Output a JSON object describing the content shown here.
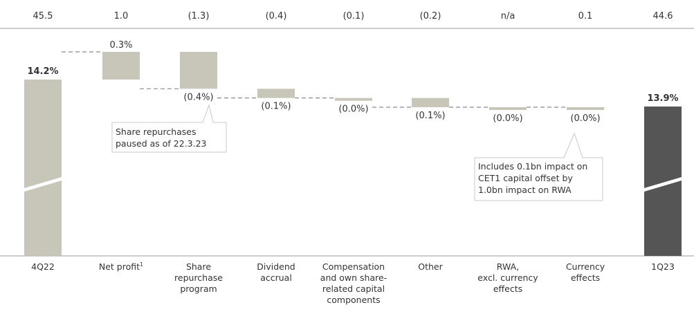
{
  "chart_data": {
    "type": "bar",
    "subtype": "waterfall",
    "categories": [
      {
        "lines": [
          "4Q22"
        ],
        "sup": ""
      },
      {
        "lines": [
          "Net profit"
        ],
        "sup": "1"
      },
      {
        "lines": [
          "Share",
          "repurchase",
          "program"
        ],
        "sup": ""
      },
      {
        "lines": [
          "Dividend",
          "accrual"
        ],
        "sup": ""
      },
      {
        "lines": [
          "Compensation",
          "and own share-",
          "related capital",
          "components"
        ],
        "sup": ""
      },
      {
        "lines": [
          "Other"
        ],
        "sup": ""
      },
      {
        "lines": [
          "RWA,",
          "excl. currency",
          "effects"
        ],
        "sup": ""
      },
      {
        "lines": [
          "Currency",
          "effects"
        ],
        "sup": ""
      },
      {
        "lines": [
          "1Q23"
        ],
        "sup": ""
      }
    ],
    "top_values": [
      "45.5",
      "1.0",
      "(1.3)",
      "(0.4)",
      "(0.1)",
      "(0.2)",
      "n/a",
      "0.1",
      "44.6"
    ],
    "start": 14.2,
    "end": 13.9,
    "changes": [
      0.3,
      -0.4,
      -0.1,
      -0.0,
      -0.1,
      -0.0,
      -0.0
    ],
    "bar_labels": [
      "14.2%",
      "0.3%",
      "(0.4%)",
      "(0.1%)",
      "(0.0%)",
      "(0.1%)",
      "(0.0%)",
      "(0.0%)",
      "13.9%"
    ],
    "annotations": [
      {
        "lines": [
          "Share repurchases",
          "paused as of 22.3.23"
        ]
      },
      {
        "lines": [
          "Includes 0.1bn  impact on",
          "CET1 capital offset by",
          "1.0bn impact on RWA"
        ]
      }
    ],
    "axis_break": true,
    "colors": {
      "start_bar": "#c8c6b8",
      "change_bar": "#c8c6b8",
      "end_bar": "#555555",
      "connector": "#8a8a8a",
      "text": "#333333",
      "rule": "#9a9a9a",
      "callout_border": "#c8c8c8"
    }
  }
}
